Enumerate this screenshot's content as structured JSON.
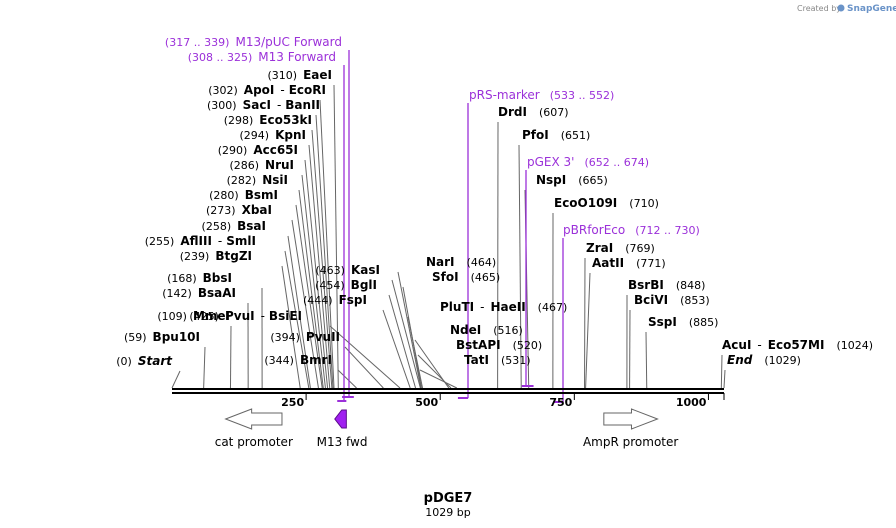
{
  "map": {
    "name": "pDGE7",
    "length_label": "1029 bp",
    "length": 1029,
    "branding": {
      "created_by": "Created by",
      "product": "SnapGene"
    }
  },
  "ruler": {
    "ticks": [
      {
        "value": 250,
        "label": "250"
      },
      {
        "value": 500,
        "label": "500"
      },
      {
        "value": 750,
        "label": "750"
      },
      {
        "value": 1000,
        "label": "1000"
      }
    ]
  },
  "sites": [
    {
      "id": "start",
      "name": "Start",
      "pos": "(0)",
      "bp": 0,
      "italic": true
    },
    {
      "id": "bpu10i",
      "name": "Bpu10I",
      "pos": "(59)",
      "bp": 59
    },
    {
      "id": "mmei",
      "name": "MmeI",
      "pos": "(109)",
      "bp": 109
    },
    {
      "id": "bsaai",
      "name": "BsaAI",
      "pos": "(142)",
      "bp": 142
    },
    {
      "id": "bbsi",
      "name": "BbsI",
      "pos": "(168)",
      "bp": 168
    },
    {
      "id": "btgzi",
      "name": "BtgZI",
      "pos": "(239)",
      "bp": 239
    },
    {
      "id": "aflIII",
      "name": "AflIII",
      "pos": "(255)",
      "bp": 255,
      "alt": "SmlI"
    },
    {
      "id": "bsai",
      "name": "BsaI",
      "pos": "(258)",
      "bp": 258
    },
    {
      "id": "xbai",
      "name": "XbaI",
      "pos": "(273)",
      "bp": 273
    },
    {
      "id": "bsmi",
      "name": "BsmI",
      "pos": "(280)",
      "bp": 280
    },
    {
      "id": "nsii",
      "name": "NsiI",
      "pos": "(282)",
      "bp": 282
    },
    {
      "id": "nrui",
      "name": "NruI",
      "pos": "(286)",
      "bp": 286
    },
    {
      "id": "acc65i",
      "name": "Acc65I",
      "pos": "(290)",
      "bp": 290
    },
    {
      "id": "kpni",
      "name": "KpnI",
      "pos": "(294)",
      "bp": 294
    },
    {
      "id": "eco53ki",
      "name": "Eco53kI",
      "pos": "(298)",
      "bp": 298
    },
    {
      "id": "saci",
      "name": "SacI",
      "pos": "(300)",
      "bp": 300,
      "alt": "BanII"
    },
    {
      "id": "apoi",
      "name": "ApoI",
      "pos": "(302)",
      "bp": 302,
      "alt": "EcoRI"
    },
    {
      "id": "eaei",
      "name": "EaeI",
      "pos": "(310)",
      "bp": 310
    },
    {
      "id": "bmri",
      "name": "BmrI",
      "pos": "(344)",
      "bp": 344
    },
    {
      "id": "pvuii",
      "name": "PvuII",
      "pos": "(394)",
      "bp": 394
    },
    {
      "id": "pvui",
      "name": "PvuI",
      "pos": "(425)",
      "bp": 425,
      "alt": "BsiEI"
    },
    {
      "id": "fspi",
      "name": "FspI",
      "pos": "(444)",
      "bp": 444
    },
    {
      "id": "bgli",
      "name": "BglI",
      "pos": "(454)",
      "bp": 454
    },
    {
      "id": "kasi",
      "name": "KasI",
      "pos": "(463)",
      "bp": 463
    },
    {
      "id": "nari",
      "name": "NarI",
      "pos": "(464)",
      "bp": 464
    },
    {
      "id": "sfoi",
      "name": "SfoI",
      "pos": "(465)",
      "bp": 465
    },
    {
      "id": "pluti",
      "name": "PluTI",
      "pos": "(467)",
      "bp": 467,
      "alt": "HaeII"
    },
    {
      "id": "ndei",
      "name": "NdeI",
      "pos": "(516)",
      "bp": 516
    },
    {
      "id": "bstapi",
      "name": "BstAPI",
      "pos": "(520)",
      "bp": 520
    },
    {
      "id": "tati",
      "name": "TatI",
      "pos": "(531)",
      "bp": 531
    },
    {
      "id": "drdi",
      "name": "DrdI",
      "pos": "(607)",
      "bp": 607
    },
    {
      "id": "pfoi",
      "name": "PfoI",
      "pos": "(651)",
      "bp": 651
    },
    {
      "id": "nspi",
      "name": "NspI",
      "pos": "(665)",
      "bp": 665
    },
    {
      "id": "ecoo109i",
      "name": "EcoO109I",
      "pos": "(710)",
      "bp": 710
    },
    {
      "id": "zrai",
      "name": "ZraI",
      "pos": "(769)",
      "bp": 769
    },
    {
      "id": "aatii",
      "name": "AatII",
      "pos": "(771)",
      "bp": 771
    },
    {
      "id": "bsrbi",
      "name": "BsrBI",
      "pos": "(848)",
      "bp": 848
    },
    {
      "id": "bcivi",
      "name": "BciVI",
      "pos": "(853)",
      "bp": 853
    },
    {
      "id": "sspi",
      "name": "SspI",
      "pos": "(885)",
      "bp": 885
    },
    {
      "id": "acui",
      "name": "AcuI",
      "pos": "(1024)",
      "bp": 1024,
      "alt": "Eco57MI"
    },
    {
      "id": "end",
      "name": "End",
      "pos": "(1029)",
      "bp": 1029,
      "italic": true
    }
  ],
  "primers": [
    {
      "id": "m13puc",
      "name": "M13/pUC Forward",
      "range": "(317 .. 339)",
      "start": 317,
      "end": 339
    },
    {
      "id": "m13fwd",
      "name": "M13 Forward",
      "range": "(308 .. 325)",
      "start": 308,
      "end": 325
    },
    {
      "id": "prs",
      "name": "pRS-marker",
      "range": "(533 .. 552)",
      "start": 533,
      "end": 552
    },
    {
      "id": "pgex3",
      "name": "pGEX 3'",
      "range": "(652 .. 674)",
      "start": 652,
      "end": 674
    },
    {
      "id": "pbrfor",
      "name": "pBRforEco",
      "range": "(712 .. 730)",
      "start": 712,
      "end": 730
    }
  ],
  "features": [
    {
      "id": "cat",
      "name": "cat promoter",
      "type": "promoter",
      "strand": "reverse",
      "start": 100,
      "end": 205
    },
    {
      "id": "m13f",
      "name": "M13 fwd",
      "type": "primer_bind",
      "strand": "reverse",
      "start": 309,
      "end": 325
    },
    {
      "id": "ampr",
      "name": "AmpR promoter",
      "type": "promoter",
      "strand": "forward",
      "start": 805,
      "end": 905
    }
  ],
  "colors": {
    "primer": "#9b30d9",
    "m13fwd_fill": "#a020f0",
    "leader": "#666666",
    "promoter_fill": "#ffffff"
  }
}
